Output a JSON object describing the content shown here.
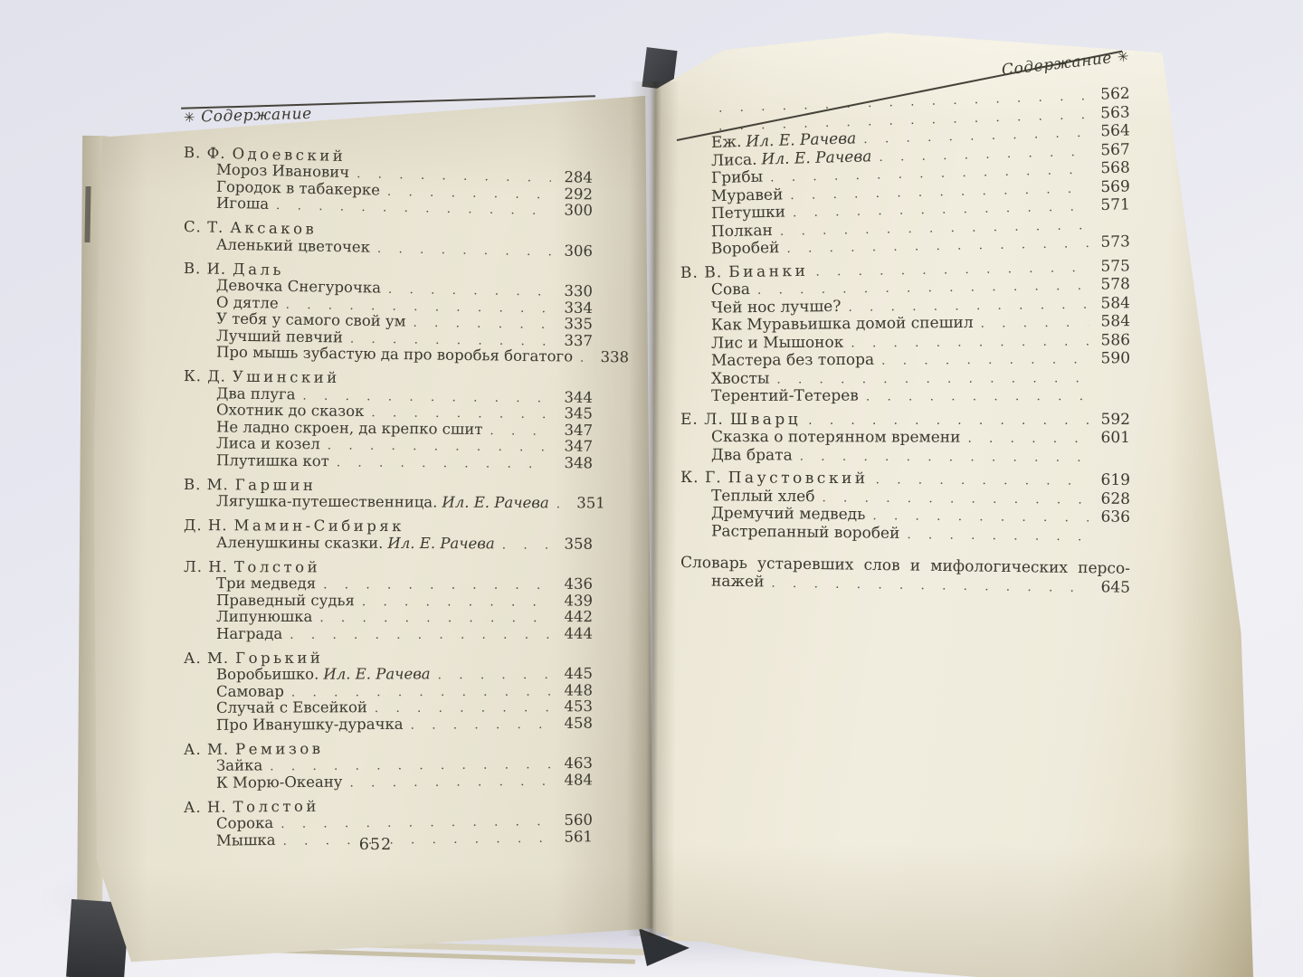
{
  "colors": {
    "surface": "#e9e9f1",
    "left_page": "#e8e3d1",
    "right_page": "#f0ecdd",
    "text": "#3b392f",
    "cover": "#33363a"
  },
  "left_page": {
    "header": {
      "symbol": "✳",
      "title": "Содержание"
    },
    "footer_page_number": "652",
    "rows": [
      {
        "type": "author",
        "initials": "В. Ф.",
        "surname": "Одоевский"
      },
      {
        "type": "item",
        "title": "Мороз Иванович",
        "page": "284"
      },
      {
        "type": "item",
        "title": "Городок в табакерке",
        "page": "292"
      },
      {
        "type": "item",
        "title": "Игоша",
        "page": "300"
      },
      {
        "type": "author",
        "initials": "С. Т.",
        "surname": "Аксаков"
      },
      {
        "type": "item",
        "title": "Аленький цветочек",
        "page": "306"
      },
      {
        "type": "author",
        "initials": "В. И.",
        "surname": "Даль"
      },
      {
        "type": "item",
        "title": "Девочка Снегурочка",
        "page": "330"
      },
      {
        "type": "item",
        "title": "О дятле",
        "page": "334"
      },
      {
        "type": "item",
        "title": "У тебя у самого свой ум",
        "page": "335"
      },
      {
        "type": "item",
        "title": "Лучший певчий",
        "page": "337"
      },
      {
        "type": "item",
        "title": "Про мышь зубастую да про воробья богатого",
        "page": "338"
      },
      {
        "type": "author",
        "initials": "К. Д.",
        "surname": "Ушинский"
      },
      {
        "type": "item",
        "title": "Два плуга",
        "page": "344"
      },
      {
        "type": "item",
        "title": "Охотник до сказок",
        "page": "345"
      },
      {
        "type": "item",
        "title": "Не ладно скроен, да крепко сшит",
        "page": "347"
      },
      {
        "type": "item",
        "title": "Лиса и козел",
        "page": "347"
      },
      {
        "type": "item",
        "title": "Плутишка кот",
        "page": "348"
      },
      {
        "type": "author",
        "initials": "В. М.",
        "surname": "Гаршин"
      },
      {
        "type": "item",
        "title": "Лягушка-путешественница.",
        "note": "Ил. Е. Рачева",
        "page": "351"
      },
      {
        "type": "author",
        "initials": "Д. Н.",
        "surname": "Мамин-Сибиряк"
      },
      {
        "type": "item",
        "title": "Аленушкины сказки.",
        "note": "Ил. Е. Рачева",
        "page": "358"
      },
      {
        "type": "author",
        "initials": "Л. Н.",
        "surname": "Толстой"
      },
      {
        "type": "item",
        "title": "Три медведя",
        "page": "436"
      },
      {
        "type": "item",
        "title": "Праведный судья",
        "page": "439"
      },
      {
        "type": "item",
        "title": "Липунюшка",
        "page": "442"
      },
      {
        "type": "item",
        "title": "Награда",
        "page": "444"
      },
      {
        "type": "author",
        "initials": "А. М.",
        "surname": "Горький"
      },
      {
        "type": "item",
        "title": "Воробьишко.",
        "note": "Ил. Е. Рачева",
        "page": "445"
      },
      {
        "type": "item",
        "title": "Самовар",
        "page": "448"
      },
      {
        "type": "item",
        "title": "Случай с Евсейкой",
        "page": "453"
      },
      {
        "type": "item",
        "title": "Про Иванушку-дурачка",
        "page": "458"
      },
      {
        "type": "author",
        "initials": "А. М.",
        "surname": "Ремизов"
      },
      {
        "type": "item",
        "title": "Зайка",
        "page": "463"
      },
      {
        "type": "item",
        "title": "К Морю-Океану",
        "page": "484"
      },
      {
        "type": "author",
        "initials": "А. Н.",
        "surname": "Толстой"
      },
      {
        "type": "item",
        "title": "Сорока",
        "page": "560"
      },
      {
        "type": "item",
        "title": "Мышка",
        "page": "561"
      }
    ]
  },
  "right_page": {
    "header": {
      "title": "Содержание",
      "symbol": "✳"
    },
    "rows": [
      {
        "type": "item",
        "title": "",
        "page": "562"
      },
      {
        "type": "item",
        "title": "",
        "page": "563"
      },
      {
        "type": "item",
        "title": "Еж.",
        "note": "Ил. Е. Рачева",
        "page": "564"
      },
      {
        "type": "item",
        "title": "Лиса.",
        "note": "Ил. Е. Рачева",
        "page": "567"
      },
      {
        "type": "item",
        "title": "Грибы",
        "page": "568"
      },
      {
        "type": "item",
        "title": "Муравей",
        "page": "569"
      },
      {
        "type": "item",
        "title": "Петушки",
        "page": "571"
      },
      {
        "type": "item",
        "title": "Полкан",
        "page": ""
      },
      {
        "type": "item",
        "title": "Воробей",
        "page": "573"
      },
      {
        "type": "author",
        "initials": "В. В.",
        "surname": "Бианки",
        "page": "575"
      },
      {
        "type": "item",
        "title": "Сова",
        "page": "578"
      },
      {
        "type": "item",
        "title": "Чей нос лучше?",
        "page": "584"
      },
      {
        "type": "item",
        "title": "Как Муравьишка домой спешил",
        "page": "584"
      },
      {
        "type": "item",
        "title": "Лис и Мышонок",
        "page": "586"
      },
      {
        "type": "item",
        "title": "Мастера без топора",
        "page": "590"
      },
      {
        "type": "item",
        "title": "Хвосты",
        "page": ""
      },
      {
        "type": "item",
        "title": "Терентий-Тетерев",
        "page": ""
      },
      {
        "type": "author",
        "initials": "Е. Л.",
        "surname": "Шварц",
        "page": "592"
      },
      {
        "type": "item",
        "title": "Сказка о потерянном времени",
        "page": "601"
      },
      {
        "type": "item",
        "title": "Два брата",
        "page": ""
      },
      {
        "type": "author",
        "initials": "К. Г.",
        "surname": "Паустовский",
        "page": "619"
      },
      {
        "type": "item",
        "title": "Теплый хлеб",
        "page": "628"
      },
      {
        "type": "item",
        "title": "Дремучий медведь",
        "page": "636"
      },
      {
        "type": "item",
        "title": "Растрепанный воробей",
        "page": ""
      },
      {
        "type": "text",
        "title": "Словарь устаревших слов и мифологических персо-",
        "gap_before": true
      },
      {
        "type": "item",
        "title": "нажей",
        "page": "645"
      }
    ]
  }
}
